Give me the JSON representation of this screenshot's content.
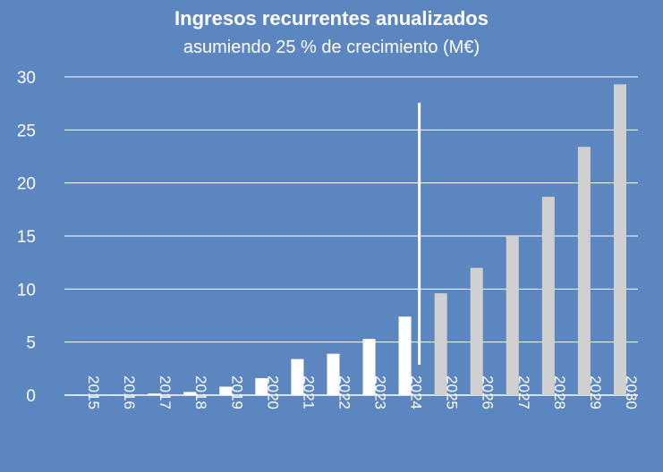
{
  "chart_data": {
    "type": "bar",
    "title": "Ingresos recurrentes anualizados",
    "subtitle": "asumiendo 25 % de crecimiento (M€)",
    "categories": [
      "2015",
      "2016",
      "2017",
      "2018",
      "2019",
      "2020",
      "2021",
      "2022",
      "2023",
      "2024",
      "2025",
      "2026",
      "2027",
      "2028",
      "2029",
      "2030"
    ],
    "series": [
      {
        "values": [
          0.05,
          0.05,
          0.15,
          0.3,
          0.8,
          1.6,
          3.4,
          3.9,
          5.3,
          7.4,
          9.6,
          12.0,
          15.0,
          18.7,
          23.4,
          29.3
        ]
      }
    ],
    "historical_colour": "#ffffff",
    "projected_colour": "#d0d0d0",
    "projection_starts_at": "2025",
    "ylim": [
      0,
      30
    ],
    "yticks": [
      0,
      5,
      10,
      15,
      20,
      25,
      30
    ],
    "grid": true,
    "xlabel": "",
    "ylabel": ""
  }
}
